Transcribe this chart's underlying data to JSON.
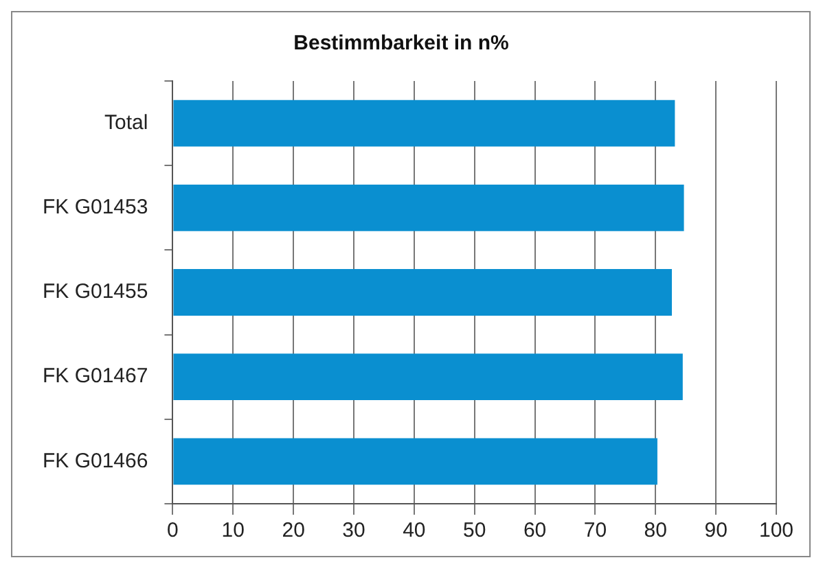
{
  "chart_data": {
    "type": "bar",
    "orientation": "horizontal",
    "title": "Bestimmbarkeit in n%",
    "categories": [
      "Total",
      "FK G01453",
      "FK G01455",
      "FK G01467",
      "FK G01466"
    ],
    "values": [
      83.2,
      84.7,
      82.7,
      84.5,
      80.3
    ],
    "color": "#0a8fd0",
    "xlim": [
      0,
      100
    ],
    "xticks": [
      0,
      10,
      20,
      30,
      40,
      50,
      60,
      70,
      80,
      90,
      100
    ],
    "grid": "x",
    "legend": false
  }
}
